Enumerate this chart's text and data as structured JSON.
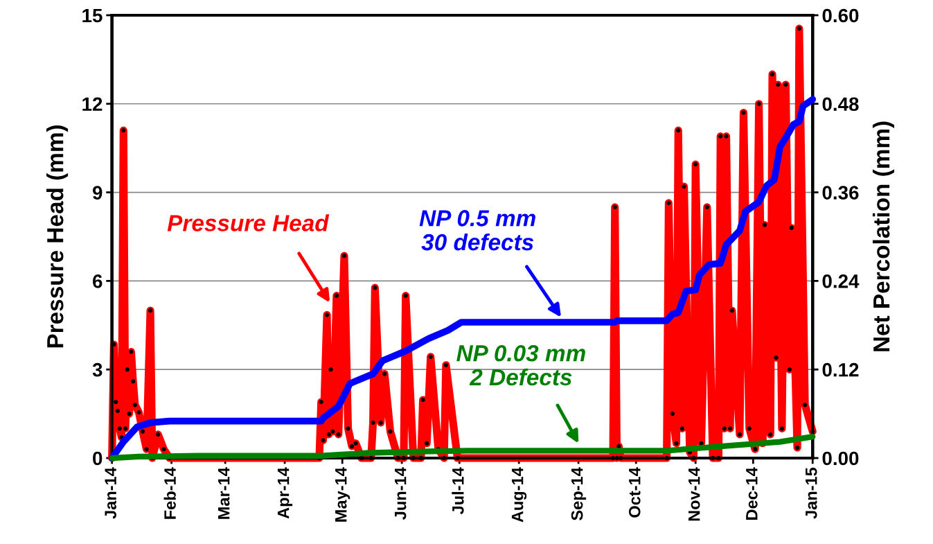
{
  "chart_data": {
    "type": "line",
    "ylabel": "Pressure Head (mm)",
    "y2label": "Net Percolation (mm)",
    "xlim": [
      "2014-01-01",
      "2015-01-01"
    ],
    "xticks": [
      {
        "value": "2014-01-01",
        "label": "Jan-14"
      },
      {
        "value": "2014-02-01",
        "label": "Feb-14"
      },
      {
        "value": "2014-03-01",
        "label": "Mar-14"
      },
      {
        "value": "2014-04-01",
        "label": "Apr-14"
      },
      {
        "value": "2014-05-01",
        "label": "May-14"
      },
      {
        "value": "2014-06-01",
        "label": "Jun-14"
      },
      {
        "value": "2014-07-01",
        "label": "Jul-14"
      },
      {
        "value": "2014-08-01",
        "label": "Aug-14"
      },
      {
        "value": "2014-09-01",
        "label": "Sep-14"
      },
      {
        "value": "2014-10-01",
        "label": "Oct-14"
      },
      {
        "value": "2014-11-01",
        "label": "Nov-14"
      },
      {
        "value": "2014-12-01",
        "label": "Dec-14"
      },
      {
        "value": "2015-01-01",
        "label": "Jan-15"
      }
    ],
    "ylim": [
      0,
      15
    ],
    "yticks": [
      0,
      3,
      6,
      9,
      12,
      15
    ],
    "y2lim": [
      0,
      0.6
    ],
    "y2ticks": [
      {
        "value": 0,
        "label": "0.00"
      },
      {
        "value": 0.12,
        "label": "0.12"
      },
      {
        "value": 0.24,
        "label": "0.24"
      },
      {
        "value": 0.36,
        "label": "0.36"
      },
      {
        "value": 0.48,
        "label": "0.48"
      },
      {
        "value": 0.6,
        "label": "0.60"
      }
    ],
    "grid": "y",
    "legend": false,
    "series": [
      {
        "color": "#ff0000",
        "marker": "circle",
        "axis": "y",
        "x": [
          "2014-01-01",
          "2014-01-02",
          "2014-01-03",
          "2014-01-04",
          "2014-01-05",
          "2014-01-06",
          "2014-01-07",
          "2014-01-08",
          "2014-01-09",
          "2014-01-10",
          "2014-01-11",
          "2014-01-12",
          "2014-01-13",
          "2014-01-15",
          "2014-01-17",
          "2014-01-19",
          "2014-01-21",
          "2014-01-22",
          "2014-01-25",
          "2014-01-28",
          "2014-01-31",
          "2014-04-19",
          "2014-04-20",
          "2014-04-21",
          "2014-04-23",
          "2014-04-24",
          "2014-04-25",
          "2014-04-26",
          "2014-04-28",
          "2014-04-29",
          "2014-05-02",
          "2014-05-04",
          "2014-05-06",
          "2014-05-08",
          "2014-05-11",
          "2014-05-16",
          "2014-05-17",
          "2014-05-18",
          "2014-05-21",
          "2014-05-23",
          "2014-05-26",
          "2014-05-30",
          "2014-06-02",
          "2014-06-03",
          "2014-06-07",
          "2014-06-11",
          "2014-06-12",
          "2014-06-14",
          "2014-06-16",
          "2014-06-20",
          "2014-06-23",
          "2014-06-24",
          "2014-06-30",
          "2014-09-19",
          "2014-09-20",
          "2014-09-21",
          "2014-09-22",
          "2014-09-23",
          "2014-10-17",
          "2014-10-18",
          "2014-10-20",
          "2014-10-22",
          "2014-10-23",
          "2014-10-25",
          "2014-10-26",
          "2014-10-29",
          "2014-10-31",
          "2014-11-01",
          "2014-11-04",
          "2014-11-07",
          "2014-11-10",
          "2014-11-13",
          "2014-11-14",
          "2014-11-16",
          "2014-11-17",
          "2014-11-19",
          "2014-11-20",
          "2014-11-24",
          "2014-11-26",
          "2014-11-29",
          "2014-12-02",
          "2014-12-04",
          "2014-12-06",
          "2014-12-07",
          "2014-12-10",
          "2014-12-11",
          "2014-12-13",
          "2014-12-14",
          "2014-12-16",
          "2014-12-18",
          "2014-12-20",
          "2014-12-21",
          "2014-12-24",
          "2014-12-25",
          "2014-12-28",
          "2015-01-01"
        ],
        "values": [
          0,
          3.85,
          1.9,
          1.6,
          1.0,
          0.7,
          11.1,
          1.0,
          3.0,
          1.5,
          3.6,
          2.6,
          1.8,
          1.55,
          0.9,
          0.3,
          5.0,
          0,
          0.8,
          0.3,
          0,
          0,
          1.9,
          0.6,
          4.85,
          0.8,
          3.0,
          0.9,
          5.5,
          0.8,
          6.85,
          1.0,
          0.4,
          0.5,
          0,
          0,
          1.2,
          5.77,
          1.2,
          2.85,
          0.9,
          0,
          0,
          5.5,
          0,
          0,
          1.97,
          0.5,
          3.43,
          0.3,
          0,
          3.15,
          0,
          0,
          8.5,
          0,
          0.4,
          0,
          0,
          8.64,
          1.5,
          0.5,
          11.1,
          1.0,
          9.2,
          0.2,
          0,
          9.95,
          0.5,
          8.5,
          0,
          0,
          10.9,
          1.0,
          10.9,
          1.0,
          5.0,
          0.8,
          11.7,
          1.0,
          0.3,
          12.0,
          0.5,
          7.9,
          0.8,
          13.0,
          3.4,
          12.65,
          1.0,
          12.65,
          3.0,
          7.8,
          0.35,
          14.55,
          1.8,
          0.9
        ]
      },
      {
        "color": "#0000ff",
        "axis": "y2",
        "x": [
          "2014-01-01",
          "2014-01-07",
          "2014-01-14",
          "2014-01-21",
          "2014-01-31",
          "2014-04-20",
          "2014-04-21",
          "2014-04-29",
          "2014-05-05",
          "2014-05-17",
          "2014-05-22",
          "2014-06-03",
          "2014-06-15",
          "2014-06-25",
          "2014-07-02",
          "2014-09-20",
          "2014-09-21",
          "2014-10-17",
          "2014-10-20",
          "2014-10-23",
          "2014-10-27",
          "2014-11-01",
          "2014-11-03",
          "2014-11-08",
          "2014-11-14",
          "2014-11-17",
          "2014-11-24",
          "2014-11-27",
          "2014-12-04",
          "2014-12-08",
          "2014-12-12",
          "2014-12-15",
          "2014-12-18",
          "2014-12-22",
          "2014-12-25",
          "2014-12-27",
          "2015-01-01"
        ],
        "values": [
          0,
          0.022,
          0.042,
          0.048,
          0.05,
          0.05,
          0.054,
          0.07,
          0.101,
          0.114,
          0.132,
          0.145,
          0.162,
          0.173,
          0.184,
          0.184,
          0.186,
          0.186,
          0.195,
          0.197,
          0.226,
          0.228,
          0.248,
          0.262,
          0.264,
          0.289,
          0.308,
          0.334,
          0.347,
          0.369,
          0.377,
          0.422,
          0.434,
          0.452,
          0.456,
          0.477,
          0.486
        ]
      },
      {
        "color": "#008000",
        "axis": "y2",
        "x": [
          "2014-01-01",
          "2014-01-15",
          "2014-02-15",
          "2014-04-20",
          "2014-05-15",
          "2014-06-15",
          "2014-07-05",
          "2014-10-17",
          "2014-11-15",
          "2014-12-15",
          "2015-01-01"
        ],
        "values": [
          0,
          0.002,
          0.003,
          0.003,
          0.007,
          0.009,
          0.01,
          0.01,
          0.016,
          0.022,
          0.029
        ]
      }
    ],
    "annotations": [
      "Pressure Head",
      "NP 0.5 mm\n30 defects",
      "NP 0.03 mm\n2 Defects"
    ]
  }
}
